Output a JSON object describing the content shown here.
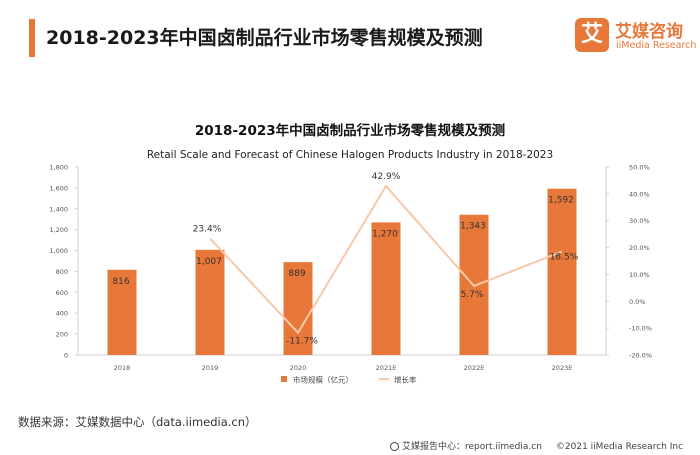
{
  "header": {
    "title": "2018-2023年中国卤制品行业市场零售规模及预测"
  },
  "logo": {
    "mark": "艾",
    "cn": "艾媒咨询",
    "en": "iiMedia Research",
    "icon": "iimedia-logo-icon"
  },
  "source": "数据来源：艾媒数据中心（data.iimedia.cn）",
  "footer": {
    "report": "艾媒报告中心：report.iimedia.cn",
    "copyright": "©2021  iiMedia Research  Inc"
  },
  "colors": {
    "accent": "#e8783a",
    "bar": "#e8783a",
    "line": "#f8c9a8"
  },
  "chart_data": {
    "type": "bar",
    "title": "2018-2023年中国卤制品行业市场零售规模及预测",
    "subtitle": "Retail Scale and Forecast of Chinese Halogen Products Industry in 2018-2023",
    "categories": [
      "2018",
      "2019",
      "2020",
      "2021E",
      "2022E",
      "2023E"
    ],
    "series": [
      {
        "name": "市场规模（亿元）",
        "type": "bar",
        "axis": "left",
        "values": [
          816,
          1007,
          889,
          1270,
          1343,
          1592
        ],
        "labels": [
          "816",
          "1,007",
          "889",
          "1,270",
          "1,343",
          "1,592"
        ]
      },
      {
        "name": "增长率",
        "type": "line",
        "axis": "right",
        "values": [
          null,
          23.4,
          -11.7,
          42.9,
          5.7,
          18.5
        ],
        "labels": [
          "",
          "23.4%",
          "-11.7%",
          "42.9%",
          "5.7%",
          "18.5%"
        ]
      }
    ],
    "y_left": {
      "ylim": [
        0,
        1800
      ],
      "ticks": [
        "0",
        "200",
        "400",
        "600",
        "800",
        "1,000",
        "1,200",
        "1,400",
        "1,600",
        "1,800"
      ]
    },
    "y_right": {
      "ylim": [
        -20,
        50
      ],
      "ticks": [
        "-20.0%",
        "-10.0%",
        "0.0%",
        "10.0%",
        "20.0%",
        "30.0%",
        "40.0%",
        "50.0%"
      ]
    },
    "grid": false,
    "legend": "bottom-center"
  }
}
